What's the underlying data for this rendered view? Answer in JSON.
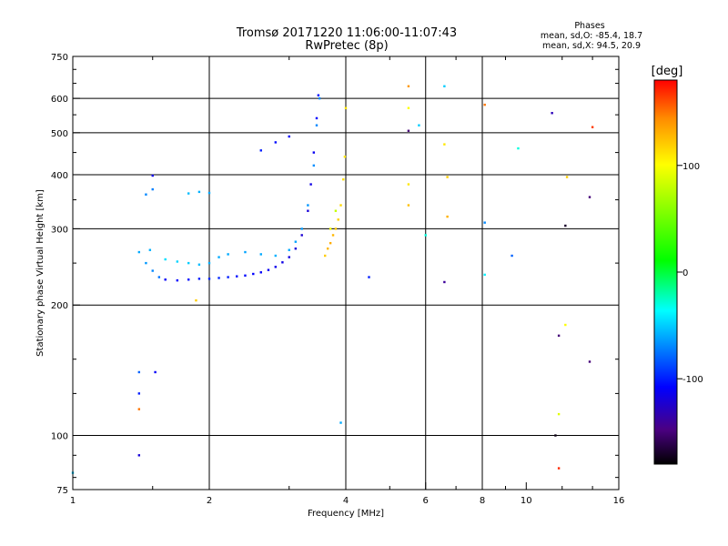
{
  "chart_data": {
    "type": "scatter",
    "title": "Tromsø 20171220 11:06:00-11:07:43",
    "subtitle": "RwPretec (8p)",
    "xlabel": "Frequency [MHz]",
    "ylabel": "Stationary phase Virtual Height [km]",
    "x_scale": "log",
    "y_scale": "log",
    "xlim": [
      1,
      16
    ],
    "ylim": [
      75,
      750
    ],
    "x_ticks": [
      1,
      2,
      4,
      6,
      8,
      10,
      16
    ],
    "x_tick_labels": [
      "1",
      "2",
      "4",
      "6",
      "8",
      "10",
      "16"
    ],
    "x_grid": [
      2,
      4,
      6,
      8
    ],
    "y_ticks": [
      75,
      100,
      200,
      300,
      400,
      500,
      600,
      750
    ],
    "y_tick_labels": [
      "75",
      "100",
      "200",
      "300",
      "400",
      "500",
      "600",
      "750"
    ],
    "y_grid": [
      100,
      200,
      300,
      400,
      500,
      600
    ],
    "grid": true,
    "stats_header": "Phases",
    "stats_line1": "mean, sd,O: -85.4, 18.7",
    "stats_line2": "mean, sd,X:  94.5, 20.9",
    "colorbar": {
      "label": "[deg]",
      "range": [
        -180,
        180
      ],
      "ticks": [
        100,
        0,
        -100
      ],
      "tick_labels": [
        "100",
        "0",
        "-100"
      ],
      "colors": [
        "#000000",
        "#4b0082",
        "#0000ff",
        "#00ffff",
        "#00ff00",
        "#ffff00",
        "#ff8c00",
        "#ff0000"
      ]
    },
    "series": [
      {
        "points": [
          [
            1.6,
            229,
            -110
          ],
          [
            1.7,
            228,
            -108
          ],
          [
            1.8,
            229,
            -105
          ],
          [
            1.9,
            230,
            -100
          ],
          [
            2.0,
            230,
            -98
          ],
          [
            2.1,
            231,
            -97
          ],
          [
            2.2,
            232,
            -100
          ],
          [
            2.3,
            233,
            -104
          ],
          [
            2.4,
            234,
            -106
          ],
          [
            2.5,
            236,
            -108
          ],
          [
            2.6,
            238,
            -110
          ],
          [
            2.7,
            241,
            -112
          ],
          [
            2.8,
            245,
            -114
          ],
          [
            2.9,
            251,
            -116
          ],
          [
            3.0,
            258,
            -118
          ],
          [
            3.1,
            270,
            -120
          ],
          [
            3.2,
            290,
            -122
          ],
          [
            3.3,
            330,
            -120
          ],
          [
            3.35,
            380,
            -116
          ],
          [
            3.4,
            450,
            -112
          ],
          [
            3.45,
            540,
            -108
          ],
          [
            3.48,
            610,
            -105
          ],
          [
            2.2,
            262,
            -60
          ],
          [
            2.4,
            265,
            -62
          ],
          [
            2.6,
            262,
            -60
          ],
          [
            2.8,
            260,
            -58
          ],
          [
            3.0,
            268,
            -60
          ],
          [
            3.1,
            280,
            -62
          ],
          [
            3.2,
            300,
            -64
          ],
          [
            3.3,
            340,
            -66
          ],
          [
            3.4,
            420,
            -68
          ],
          [
            3.45,
            520,
            -70
          ],
          [
            3.5,
            600,
            -70
          ],
          [
            1.6,
            255,
            -45
          ],
          [
            1.7,
            252,
            -48
          ],
          [
            1.8,
            250,
            -50
          ],
          [
            1.9,
            248,
            -55
          ],
          [
            2.0,
            250,
            -58
          ],
          [
            2.1,
            258,
            -60
          ],
          [
            1.45,
            250,
            -65
          ],
          [
            1.5,
            240,
            -70
          ],
          [
            1.55,
            232,
            -75
          ],
          [
            1.4,
            265,
            -60
          ],
          [
            1.48,
            268,
            -58
          ],
          [
            1.45,
            360,
            -70
          ],
          [
            1.5,
            370,
            -72
          ],
          [
            1.8,
            362,
            -55
          ],
          [
            1.9,
            365,
            -58
          ],
          [
            2.0,
            363,
            -60
          ],
          [
            2.6,
            455,
            -100
          ],
          [
            2.8,
            475,
            -105
          ],
          [
            3.0,
            490,
            -110
          ],
          [
            3.6,
            260,
            120
          ],
          [
            3.65,
            270,
            128
          ],
          [
            3.7,
            278,
            132
          ],
          [
            3.75,
            290,
            128
          ],
          [
            3.8,
            300,
            122
          ],
          [
            3.85,
            315,
            118
          ],
          [
            3.9,
            340,
            115
          ],
          [
            3.95,
            390,
            112
          ],
          [
            3.98,
            440,
            110
          ],
          [
            3.7,
            300,
            95
          ],
          [
            3.8,
            330,
            80
          ],
          [
            1.4,
            140,
            -80
          ],
          [
            1.4,
            125,
            -100
          ],
          [
            1.52,
            140,
            -110
          ],
          [
            1.4,
            115,
            150
          ],
          [
            1.0,
            82,
            -50
          ],
          [
            1.4,
            90,
            -120
          ],
          [
            1.5,
            398,
            -115
          ],
          [
            1.87,
            205,
            120
          ],
          [
            3.9,
            107,
            -60
          ],
          [
            4.5,
            232,
            -100
          ],
          [
            5.5,
            505,
            -150
          ],
          [
            5.5,
            380,
            110
          ],
          [
            5.5,
            340,
            125
          ],
          [
            5.5,
            640,
            140
          ],
          [
            5.5,
            570,
            100
          ],
          [
            6.6,
            640,
            -50
          ],
          [
            6.6,
            470,
            110
          ],
          [
            6.7,
            395,
            120
          ],
          [
            6.7,
            320,
            130
          ],
          [
            6.6,
            226,
            -140
          ],
          [
            6.0,
            290,
            -30
          ],
          [
            5.8,
            520,
            -50
          ],
          [
            8.1,
            310,
            -70
          ],
          [
            8.1,
            235,
            -40
          ],
          [
            8.1,
            580,
            150
          ],
          [
            9.3,
            260,
            -80
          ],
          [
            9.6,
            460,
            -30
          ],
          [
            11.4,
            555,
            -130
          ],
          [
            11.8,
            170,
            -150
          ],
          [
            11.6,
            100,
            -175
          ],
          [
            12.3,
            395,
            120
          ],
          [
            12.2,
            180,
            100
          ],
          [
            11.8,
            112,
            90
          ],
          [
            12.2,
            305,
            -170
          ],
          [
            13.8,
            355,
            -150
          ],
          [
            13.8,
            148,
            -150
          ],
          [
            11.8,
            84,
            170
          ],
          [
            14.0,
            515,
            165
          ],
          [
            4.0,
            570,
            110
          ]
        ]
      }
    ]
  }
}
